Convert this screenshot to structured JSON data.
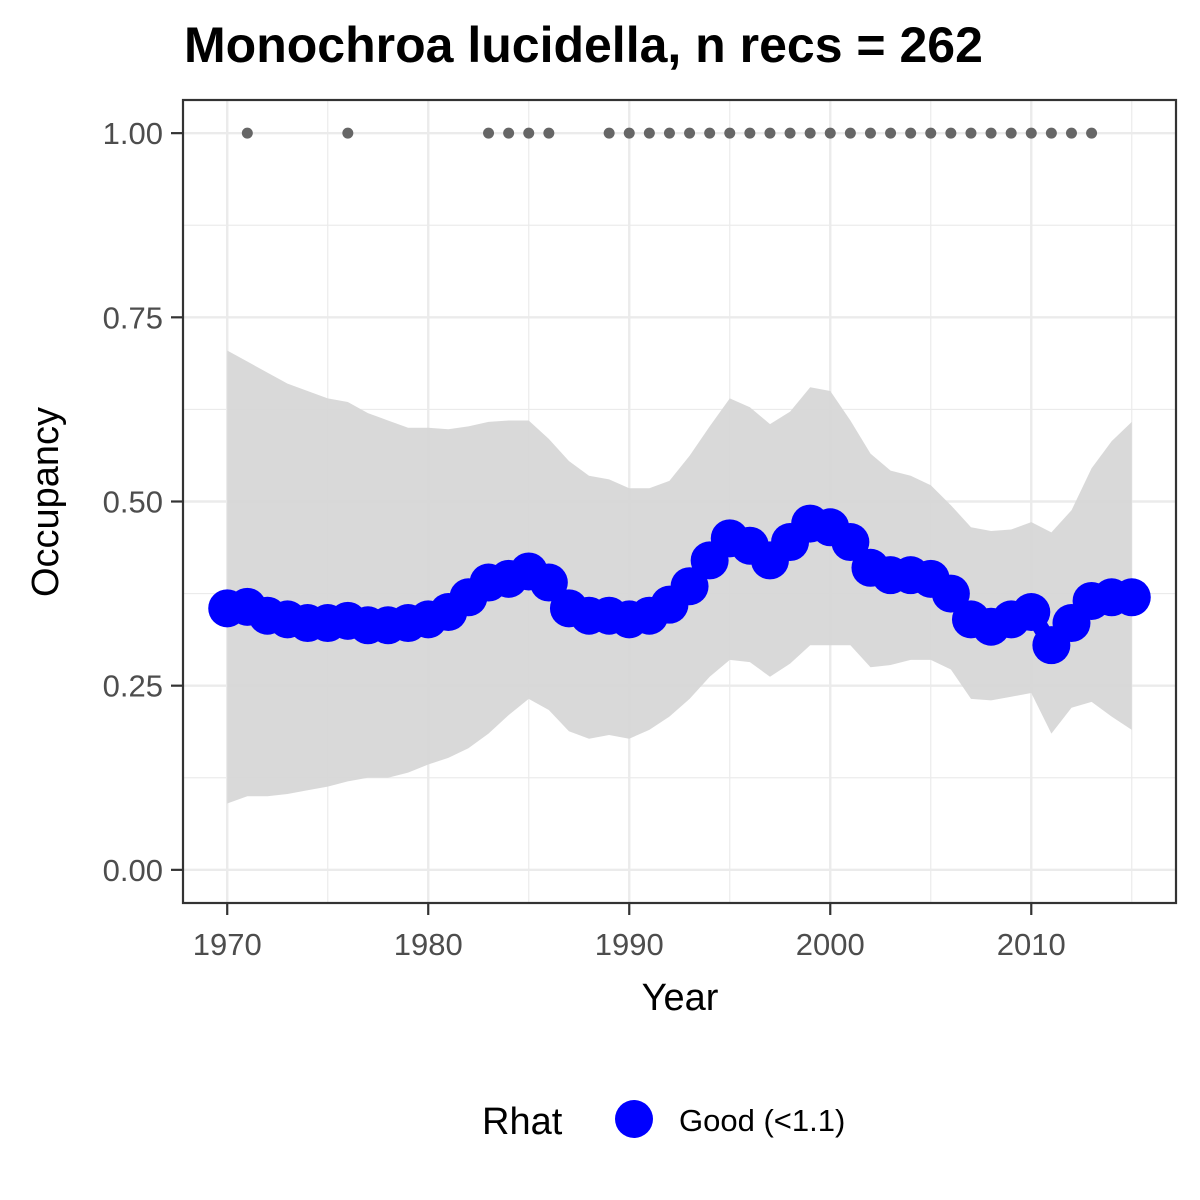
{
  "chart_data": {
    "type": "line",
    "title": "Monochroa lucidella, n recs = 262",
    "xlabel": "Year",
    "ylabel": "Occupancy",
    "xlim": [
      1967.8,
      1017.2
    ],
    "ylim": [
      -0.045,
      1.045
    ],
    "x_ticks": [
      1970,
      1980,
      1990,
      2000,
      2010
    ],
    "x_tick_labels": [
      "1970",
      "1980",
      "1990",
      "2000",
      "2010"
    ],
    "y_ticks": [
      0,
      0.25,
      0.5,
      0.75,
      1
    ],
    "y_tick_labels": [
      "0.00",
      "0.25",
      "0.50",
      "0.75",
      "1.00"
    ],
    "grid": true,
    "years": [
      1970,
      1971,
      1972,
      1973,
      1974,
      1975,
      1976,
      1977,
      1978,
      1979,
      1980,
      1981,
      1982,
      1983,
      1984,
      1985,
      1986,
      1987,
      1988,
      1989,
      1990,
      1991,
      1992,
      1993,
      1994,
      1995,
      1996,
      1997,
      1998,
      1999,
      2000,
      2001,
      2002,
      2003,
      2004,
      2005,
      2006,
      2007,
      2008,
      2009,
      2010,
      2011,
      2012,
      2013,
      2014,
      2015
    ],
    "series": [
      {
        "name": "Good (<1.1)",
        "color": "#0000ff",
        "values": [
          0.355,
          0.357,
          0.345,
          0.34,
          0.335,
          0.335,
          0.338,
          0.332,
          0.332,
          0.335,
          0.34,
          0.35,
          0.37,
          0.39,
          0.395,
          0.405,
          0.39,
          0.355,
          0.345,
          0.345,
          0.34,
          0.345,
          0.36,
          0.385,
          0.42,
          0.45,
          0.44,
          0.42,
          0.445,
          0.47,
          0.465,
          0.445,
          0.41,
          0.4,
          0.4,
          0.395,
          0.375,
          0.34,
          0.33,
          0.34,
          0.35,
          0.305,
          0.335,
          0.365,
          0.37,
          0.37
        ]
      }
    ],
    "ribbon": {
      "color": "#d7d7d7",
      "upper": [
        0.705,
        0.69,
        0.675,
        0.66,
        0.65,
        0.64,
        0.635,
        0.62,
        0.61,
        0.6,
        0.6,
        0.598,
        0.602,
        0.608,
        0.61,
        0.61,
        0.585,
        0.555,
        0.535,
        0.53,
        0.518,
        0.518,
        0.528,
        0.562,
        0.602,
        0.64,
        0.628,
        0.605,
        0.622,
        0.655,
        0.65,
        0.61,
        0.565,
        0.542,
        0.535,
        0.522,
        0.495,
        0.465,
        0.46,
        0.462,
        0.472,
        0.458,
        0.488,
        0.545,
        0.582,
        0.608
      ],
      "lower": [
        0.09,
        0.1,
        0.1,
        0.103,
        0.108,
        0.113,
        0.12,
        0.125,
        0.125,
        0.132,
        0.143,
        0.152,
        0.165,
        0.185,
        0.21,
        0.232,
        0.217,
        0.188,
        0.178,
        0.183,
        0.178,
        0.19,
        0.208,
        0.232,
        0.262,
        0.285,
        0.282,
        0.262,
        0.28,
        0.305,
        0.305,
        0.305,
        0.275,
        0.278,
        0.285,
        0.285,
        0.272,
        0.232,
        0.23,
        0.235,
        0.24,
        0.185,
        0.22,
        0.228,
        0.208,
        0.19
      ]
    },
    "records": {
      "color": "#666666",
      "y": 1,
      "years": [
        1971,
        1976,
        1983,
        1984,
        1985,
        1986,
        1989,
        1990,
        1991,
        1992,
        1993,
        1994,
        1995,
        1996,
        1997,
        1998,
        1999,
        2000,
        2001,
        2002,
        2003,
        2004,
        2005,
        2006,
        2007,
        2008,
        2009,
        2010,
        2011,
        2012,
        2013
      ]
    },
    "legend": {
      "title": "Rhat",
      "position": "bottom",
      "items": [
        {
          "label": "Good (<1.1)",
          "color": "#0000ff"
        }
      ]
    }
  }
}
